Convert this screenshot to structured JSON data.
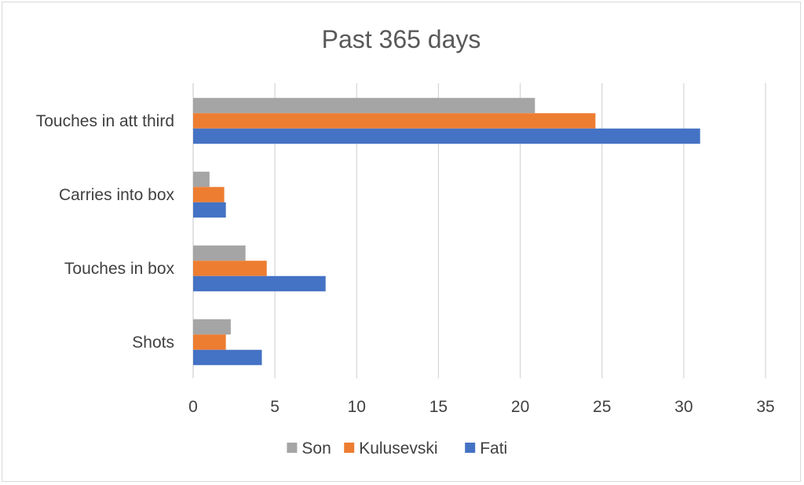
{
  "chart_data": {
    "type": "bar",
    "orientation": "horizontal",
    "title": "Past 365 days",
    "categories": [
      "Touches in att third",
      "Carries into box",
      "Touches in box",
      "Shots"
    ],
    "series": [
      {
        "name": "Son",
        "color": "#a5a5a5",
        "values": [
          20.9,
          1.0,
          3.2,
          2.3
        ]
      },
      {
        "name": "Kulusevski",
        "color": "#ed7d31",
        "values": [
          24.6,
          1.9,
          4.5,
          2.0
        ]
      },
      {
        "name": "Fati",
        "color": "#4472c4",
        "values": [
          31.0,
          2.0,
          8.1,
          4.2
        ]
      }
    ],
    "xlim": [
      0,
      35
    ],
    "xticks": [
      0,
      5,
      10,
      15,
      20,
      25,
      30,
      35
    ],
    "grid": true,
    "legend_position": "bottom"
  }
}
